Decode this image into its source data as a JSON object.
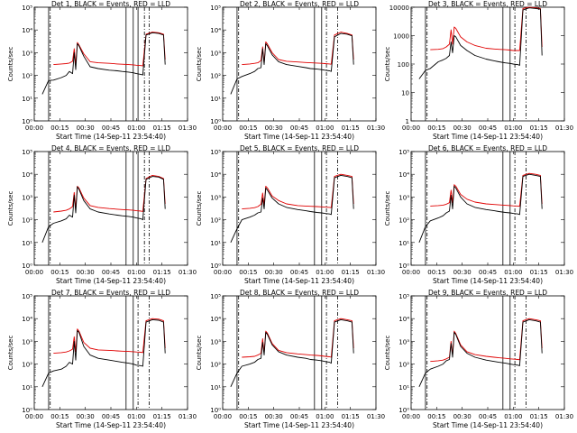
{
  "figure": {
    "x_tick_labels": [
      "00:00",
      "00:15",
      "00:30",
      "00:45",
      "01:00",
      "01:15",
      "01:30"
    ],
    "y_tick_labels_log": [
      "10⁰",
      "10¹",
      "10²",
      "10³",
      "10⁴",
      "10⁵"
    ],
    "y_tick_labels_linear": [
      "1",
      "10",
      "100",
      "1000",
      "10000"
    ],
    "colors": {
      "events": "#000000",
      "lld": "#e00000"
    }
  },
  "chart_data": [
    {
      "type": "line",
      "title": "Det 1, BLACK = Events, RED = LLD",
      "xlabel": "Start Time (14-Sep-11 23:54:40)",
      "ylabel": "Counts/sec",
      "ylim": [
        1,
        100000
      ],
      "yscale": "log",
      "grid": false,
      "x_minutes": [
        5,
        9,
        12,
        17,
        20,
        22,
        24,
        25,
        26,
        27,
        28,
        31,
        35,
        40,
        47,
        52,
        55,
        59,
        62,
        64,
        67,
        68,
        70,
        74,
        78,
        81,
        82
      ],
      "series": [
        {
          "name": "Events",
          "values": [
            15,
            60,
            62,
            80,
            100,
            150,
            120,
            1000,
            180,
            2500,
            2000,
            700,
            240,
            200,
            170,
            160,
            150,
            140,
            130,
            120,
            110,
            105,
            6000,
            7500,
            7000,
            6000,
            300
          ]
        },
        {
          "name": "LLD",
          "values": [
            null,
            null,
            300,
            320,
            330,
            350,
            420,
            1500,
            300,
            2800,
            2200,
            900,
            400,
            360,
            340,
            320,
            310,
            300,
            290,
            280,
            270,
            260,
            6500,
            8000,
            7500,
            6500,
            500
          ]
        }
      ],
      "vlines_solid": [
        9,
        57.5,
        62,
        65
      ],
      "vlines_dashdot": [
        10,
        69,
        72
      ]
    },
    {
      "type": "line",
      "title": "Det 2, BLACK = Events, RED = LLD",
      "xlabel": "Start Time (14-Sep-11 23:54:40)",
      "ylabel": "Counts/sec",
      "ylim": [
        1,
        100000
      ],
      "yscale": "log",
      "grid": false,
      "x_minutes": [
        5,
        9,
        12,
        17,
        20,
        22,
        24,
        25,
        26,
        27,
        28,
        31,
        35,
        40,
        47,
        52,
        55,
        59,
        62,
        64,
        67,
        68,
        70,
        74,
        78,
        81,
        82
      ],
      "series": [
        {
          "name": "Events",
          "values": [
            15,
            70,
            90,
            120,
            150,
            200,
            220,
            1500,
            300,
            2500,
            2000,
            800,
            400,
            300,
            250,
            220,
            200,
            190,
            180,
            170,
            160,
            150,
            5000,
            7000,
            6500,
            5500,
            300
          ]
        },
        {
          "name": "LLD",
          "values": [
            null,
            null,
            300,
            320,
            340,
            360,
            450,
            1800,
            350,
            3000,
            2400,
            1000,
            500,
            420,
            390,
            370,
            360,
            350,
            340,
            330,
            320,
            310,
            6000,
            8000,
            7000,
            6000,
            500
          ]
        }
      ],
      "vlines_solid": [
        9,
        57.5,
        62
      ],
      "vlines_dashdot": [
        10,
        65,
        72
      ]
    },
    {
      "type": "line",
      "title": "Det 3, BLACK = Events, RED = LLD",
      "xlabel": "Start Time (14-Sep-11 23:54:40)",
      "ylabel": "Counts/sec",
      "ylim": [
        1,
        10000
      ],
      "yscale": "log",
      "grid": false,
      "x_minutes": [
        5,
        9,
        12,
        17,
        20,
        22,
        24,
        25,
        26,
        27,
        28,
        31,
        35,
        40,
        47,
        52,
        55,
        59,
        62,
        64,
        67,
        68,
        70,
        74,
        78,
        81,
        82
      ],
      "series": [
        {
          "name": "Events",
          "values": [
            30,
            60,
            70,
            120,
            140,
            160,
            200,
            600,
            250,
            1000,
            900,
            450,
            300,
            200,
            150,
            130,
            120,
            110,
            105,
            100,
            95,
            90,
            8000,
            9500,
            9000,
            8500,
            200
          ]
        },
        {
          "name": "LLD",
          "values": [
            null,
            null,
            320,
            330,
            350,
            400,
            500,
            1600,
            500,
            2000,
            1800,
            900,
            600,
            450,
            360,
            340,
            330,
            320,
            310,
            300,
            300,
            300,
            9000,
            10000,
            9500,
            9000,
            400
          ]
        }
      ],
      "vlines_solid": [
        9,
        57.5,
        62
      ],
      "vlines_dashdot": [
        10,
        65,
        72
      ]
    },
    {
      "type": "line",
      "title": "Det 4, BLACK = Events, RED = LLD",
      "xlabel": "Start Time (14-Sep-11 23:54:40)",
      "ylabel": "Counts/sec",
      "ylim": [
        1,
        100000
      ],
      "yscale": "log",
      "grid": false,
      "x_minutes": [
        5,
        9,
        12,
        17,
        20,
        22,
        24,
        25,
        26,
        27,
        28,
        31,
        35,
        40,
        47,
        52,
        55,
        59,
        62,
        64,
        67,
        68,
        70,
        74,
        78,
        81,
        82
      ],
      "series": [
        {
          "name": "Events",
          "values": [
            10,
            50,
            70,
            90,
            110,
            160,
            130,
            1200,
            200,
            2800,
            2200,
            700,
            300,
            220,
            180,
            160,
            150,
            140,
            130,
            120,
            110,
            100,
            6000,
            8000,
            7500,
            6000,
            300
          ]
        },
        {
          "name": "LLD",
          "values": [
            null,
            null,
            220,
            240,
            260,
            300,
            380,
            1600,
            320,
            3000,
            2500,
            900,
            420,
            350,
            310,
            290,
            280,
            270,
            260,
            250,
            240,
            230,
            6500,
            9000,
            8000,
            6500,
            500
          ]
        }
      ],
      "vlines_solid": [
        9,
        57.5,
        62,
        65
      ],
      "vlines_dashdot": [
        10,
        69,
        72
      ]
    },
    {
      "type": "line",
      "title": "Det 5, BLACK = Events, RED = LLD",
      "xlabel": "Start Time (14-Sep-11 23:54:40)",
      "ylabel": "Counts/sec",
      "ylim": [
        1,
        100000
      ],
      "yscale": "log",
      "grid": false,
      "x_minutes": [
        5,
        9,
        12,
        17,
        20,
        22,
        24,
        25,
        26,
        27,
        28,
        31,
        35,
        40,
        47,
        52,
        55,
        59,
        62,
        64,
        67,
        68,
        70,
        74,
        78,
        81,
        82
      ],
      "series": [
        {
          "name": "Events",
          "values": [
            10,
            40,
            100,
            130,
            160,
            200,
            220,
            900,
            300,
            2500,
            2000,
            900,
            500,
            350,
            280,
            250,
            230,
            210,
            200,
            190,
            180,
            170,
            7000,
            9000,
            8000,
            7000,
            300
          ]
        },
        {
          "name": "LLD",
          "values": [
            null,
            null,
            300,
            320,
            340,
            380,
            480,
            1500,
            450,
            3000,
            2500,
            1100,
            700,
            500,
            420,
            400,
            390,
            380,
            370,
            360,
            350,
            340,
            8000,
            10000,
            9000,
            8000,
            500
          ]
        }
      ],
      "vlines_solid": [
        9,
        57.5,
        62
      ],
      "vlines_dashdot": [
        10,
        65,
        72
      ]
    },
    {
      "type": "line",
      "title": "Det 6, BLACK = Events, RED = LLD",
      "xlabel": "Start Time (14-Sep-11 23:54:40)",
      "ylabel": "Counts/sec",
      "ylim": [
        1,
        100000
      ],
      "yscale": "log",
      "grid": false,
      "x_minutes": [
        5,
        9,
        12,
        17,
        20,
        22,
        24,
        25,
        26,
        27,
        28,
        31,
        35,
        40,
        47,
        52,
        55,
        59,
        62,
        64,
        67,
        68,
        70,
        74,
        78,
        81,
        82
      ],
      "series": [
        {
          "name": "Events",
          "values": [
            10,
            50,
            90,
            120,
            150,
            200,
            240,
            1200,
            300,
            3000,
            2500,
            1000,
            500,
            350,
            280,
            250,
            230,
            210,
            200,
            190,
            180,
            170,
            8000,
            10000,
            9000,
            8000,
            300
          ]
        },
        {
          "name": "LLD",
          "values": [
            null,
            null,
            400,
            420,
            440,
            480,
            560,
            2000,
            550,
            3500,
            3000,
            1300,
            800,
            600,
            500,
            470,
            450,
            430,
            420,
            410,
            400,
            390,
            9000,
            11000,
            10000,
            9000,
            500
          ]
        }
      ],
      "vlines_solid": [
        9,
        57.5,
        62
      ],
      "vlines_dashdot": [
        10,
        65,
        72
      ]
    },
    {
      "type": "line",
      "title": "Det 7, BLACK = Events, RED = LLD",
      "xlabel": "Start Time (14-Sep-11 23:54:40)",
      "ylabel": "Counts/sec",
      "ylim": [
        1,
        100000
      ],
      "yscale": "log",
      "grid": false,
      "x_minutes": [
        5,
        9,
        12,
        17,
        20,
        22,
        24,
        25,
        26,
        27,
        28,
        31,
        35,
        40,
        47,
        52,
        55,
        59,
        62,
        64,
        67,
        68,
        70,
        74,
        78,
        81,
        82
      ],
      "series": [
        {
          "name": "Events",
          "values": [
            10,
            40,
            50,
            60,
            80,
            120,
            100,
            1000,
            150,
            3000,
            2500,
            600,
            250,
            180,
            150,
            130,
            120,
            110,
            100,
            90,
            85,
            80,
            7000,
            9000,
            8500,
            7000,
            300
          ]
        },
        {
          "name": "LLD",
          "values": [
            null,
            null,
            300,
            320,
            340,
            380,
            450,
            1600,
            350,
            3500,
            2800,
            900,
            500,
            420,
            400,
            380,
            370,
            360,
            350,
            340,
            330,
            320,
            8000,
            10000,
            9500,
            8000,
            500
          ]
        }
      ],
      "vlines_solid": [
        9,
        57.5,
        62
      ],
      "vlines_dashdot": [
        10,
        65,
        72
      ]
    },
    {
      "type": "line",
      "title": "Det 8, BLACK = Events, RED = LLD",
      "xlabel": "Start Time (14-Sep-11 23:54:40)",
      "ylabel": "Counts/sec",
      "ylim": [
        1,
        100000
      ],
      "yscale": "log",
      "grid": false,
      "x_minutes": [
        5,
        9,
        12,
        17,
        20,
        22,
        24,
        25,
        26,
        27,
        28,
        31,
        35,
        40,
        47,
        52,
        55,
        59,
        62,
        64,
        67,
        68,
        70,
        74,
        78,
        81,
        82
      ],
      "series": [
        {
          "name": "Events",
          "values": [
            10,
            40,
            80,
            100,
            120,
            160,
            180,
            900,
            250,
            2500,
            2000,
            700,
            350,
            250,
            200,
            180,
            160,
            150,
            140,
            130,
            120,
            110,
            7000,
            9000,
            8000,
            7000,
            300
          ]
        },
        {
          "name": "LLD",
          "values": [
            null,
            null,
            200,
            210,
            220,
            250,
            300,
            1300,
            320,
            2800,
            2300,
            800,
            400,
            320,
            280,
            260,
            250,
            240,
            230,
            220,
            210,
            200,
            8000,
            10000,
            9000,
            8000,
            500
          ]
        }
      ],
      "vlines_solid": [
        9,
        57.5,
        62
      ],
      "vlines_dashdot": [
        10,
        65,
        72
      ]
    },
    {
      "type": "line",
      "title": "Det 9, BLACK = Events, RED = LLD",
      "xlabel": "Start Time (14-Sep-11 23:54:40)",
      "ylabel": "Counts/sec",
      "ylim": [
        1,
        100000
      ],
      "yscale": "log",
      "grid": false,
      "x_minutes": [
        5,
        9,
        12,
        17,
        20,
        22,
        24,
        25,
        26,
        27,
        28,
        31,
        35,
        40,
        47,
        52,
        55,
        59,
        62,
        64,
        67,
        68,
        70,
        74,
        78,
        81,
        82
      ],
      "series": [
        {
          "name": "Events",
          "values": [
            10,
            40,
            60,
            80,
            100,
            140,
            160,
            800,
            200,
            2500,
            2000,
            600,
            300,
            200,
            150,
            130,
            120,
            110,
            100,
            95,
            90,
            85,
            7000,
            9000,
            8000,
            7000,
            300
          ]
        },
        {
          "name": "LLD",
          "values": [
            null,
            null,
            130,
            140,
            150,
            170,
            200,
            1000,
            250,
            2800,
            2200,
            700,
            350,
            260,
            220,
            200,
            190,
            180,
            170,
            165,
            160,
            155,
            8000,
            10000,
            9000,
            8000,
            500
          ]
        }
      ],
      "vlines_solid": [
        9,
        57.5,
        62
      ],
      "vlines_dashdot": [
        10,
        65,
        72
      ]
    }
  ]
}
